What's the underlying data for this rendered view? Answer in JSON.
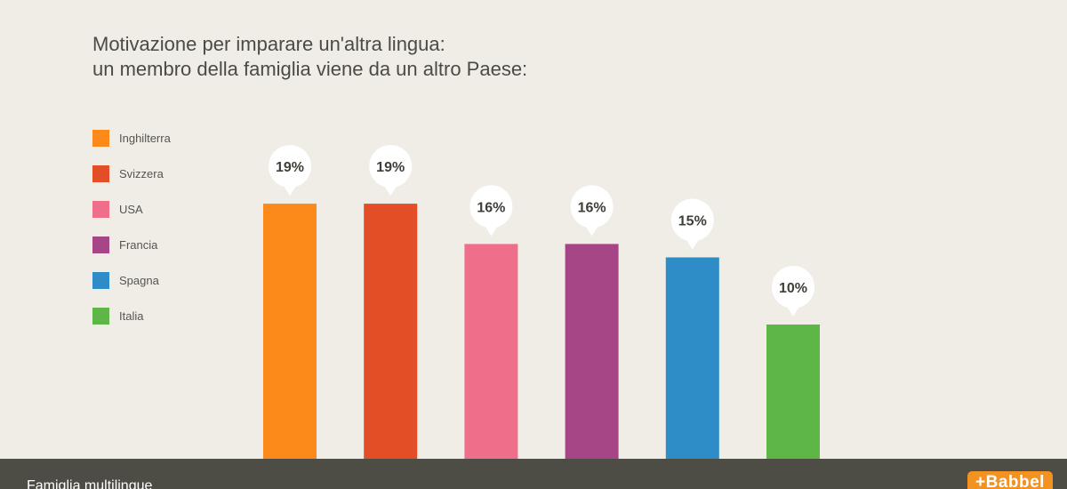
{
  "header": {
    "title_line1": "Motivazione per imparare un'altra lingua:",
    "title_line2": "un membro della famiglia viene da un altro Paese:"
  },
  "chart_data": {
    "type": "bar",
    "categories": [
      "Inghilterra",
      "Svizzera",
      "USA",
      "Francia",
      "Spagna",
      "Italia"
    ],
    "values": [
      19,
      19,
      16,
      16,
      15,
      10
    ],
    "data_labels": [
      "19%",
      "19%",
      "16%",
      "16%",
      "15%",
      "10%"
    ],
    "colors": [
      "#fb8a1a",
      "#e44e27",
      "#ef6f8a",
      "#a64686",
      "#2e8cc6",
      "#5db646"
    ],
    "unit": "%",
    "legend_position": "left",
    "grid": false,
    "axes_visible": false
  },
  "footer": {
    "caption": "Famiglia multilingue",
    "logo_text": "+Babbel"
  }
}
